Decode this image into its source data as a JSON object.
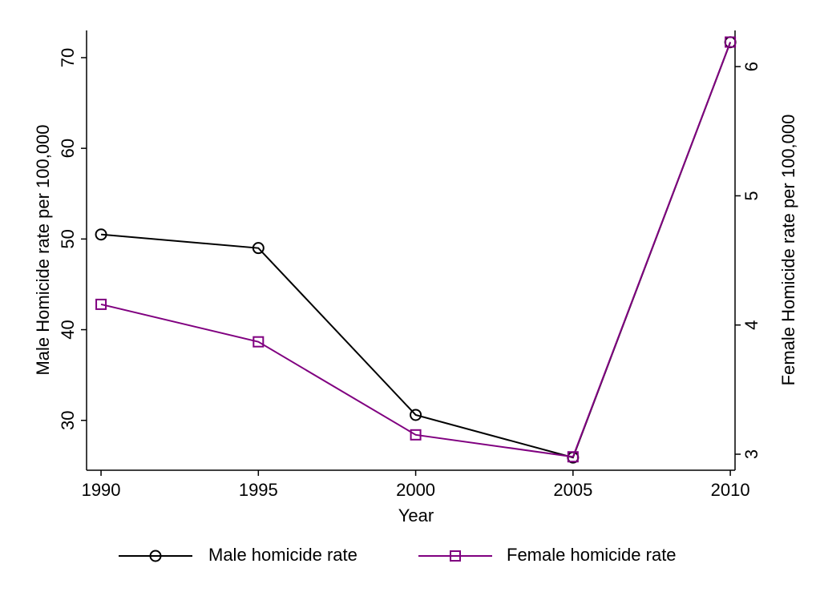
{
  "chart_data": {
    "type": "line",
    "xlabel": "Year",
    "ylabel": "Male Homicide rate per 100,000",
    "y2label": "Female Homicide rate per 100,000",
    "x": [
      1990,
      1995,
      2000,
      2005,
      2010
    ],
    "series": [
      {
        "name": "Male homicide rate",
        "color": "#000000",
        "marker": "circle",
        "values": [
          50.5,
          49.0,
          30.6,
          25.9,
          71.7
        ]
      },
      {
        "name": "Female homicide rate",
        "color": "#800080",
        "marker": "square",
        "axis": "y2",
        "values": [
          4.16,
          3.87,
          3.15,
          2.98,
          6.19
        ]
      }
    ],
    "xlim": [
      1989.54,
      2010.15
    ],
    "xticks": [
      1990,
      1995,
      2000,
      2005,
      2010
    ],
    "ylim": [
      24.5,
      73.0
    ],
    "yticks": [
      30,
      40,
      50,
      60,
      70
    ],
    "y2lim": [
      2.876,
      6.28
    ],
    "y2ticks": [
      3,
      4,
      5,
      6
    ],
    "legend": "bottom",
    "grid": false
  }
}
